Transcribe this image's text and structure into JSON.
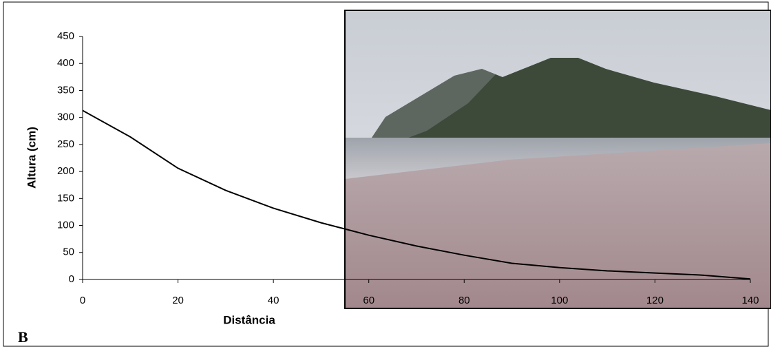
{
  "chart_data": {
    "type": "line",
    "panel_label": "B",
    "xlabel": "Distância",
    "ylabel": "Altura (cm)",
    "x": [
      0,
      10,
      20,
      30,
      40,
      50,
      60,
      70,
      80,
      90,
      100,
      110,
      120,
      130,
      140
    ],
    "values": [
      313,
      264,
      206,
      165,
      132,
      105,
      82,
      62,
      45,
      30,
      22,
      16,
      12,
      8,
      1
    ],
    "color": "#000000",
    "xlim": [
      0,
      140
    ],
    "ylim": [
      0,
      450
    ],
    "xticks": [
      0,
      20,
      40,
      60,
      80,
      100,
      120,
      140
    ],
    "yticks": [
      0,
      50,
      100,
      150,
      200,
      250,
      300,
      350,
      400,
      450
    ]
  }
}
